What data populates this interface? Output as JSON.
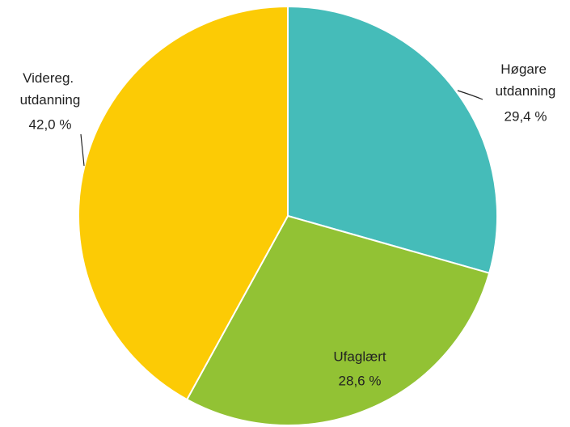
{
  "chart_data": {
    "type": "pie",
    "categories": [
      "Høgare utdanning",
      "Ufaglært",
      "Videreg. utdanning"
    ],
    "values": [
      29.4,
      28.6,
      42.0
    ],
    "value_labels": [
      "29,4 %",
      "28,6 %",
      "42,0 %"
    ],
    "colors": [
      "#45bcb9",
      "#92c234",
      "#fccb05"
    ]
  }
}
